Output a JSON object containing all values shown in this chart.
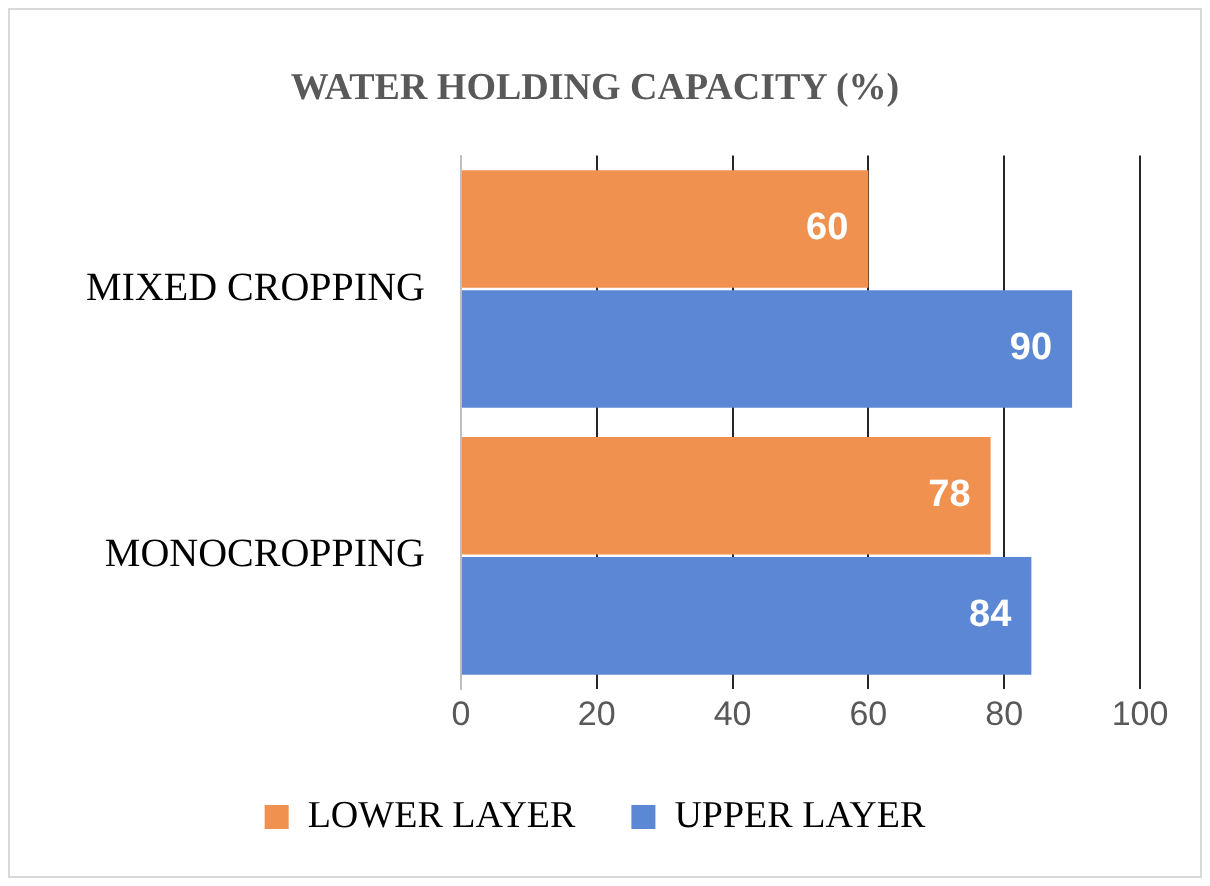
{
  "chart_data": {
    "type": "bar",
    "orientation": "horizontal",
    "title": "WATER HOLDING CAPACITY (%)",
    "categories": [
      "MIXED CROPPING",
      "MONOCROPPING"
    ],
    "series": [
      {
        "name": "LOWER LAYER",
        "color": "#f0914f",
        "values": [
          60,
          78
        ]
      },
      {
        "name": "UPPER LAYER",
        "color": "#5b87d4",
        "values": [
          90,
          84
        ]
      }
    ],
    "xlim": [
      0,
      100
    ],
    "xticks": [
      0,
      20,
      40,
      60,
      80,
      100
    ],
    "grid": "x",
    "legend": "bottom",
    "data_labels": true
  }
}
